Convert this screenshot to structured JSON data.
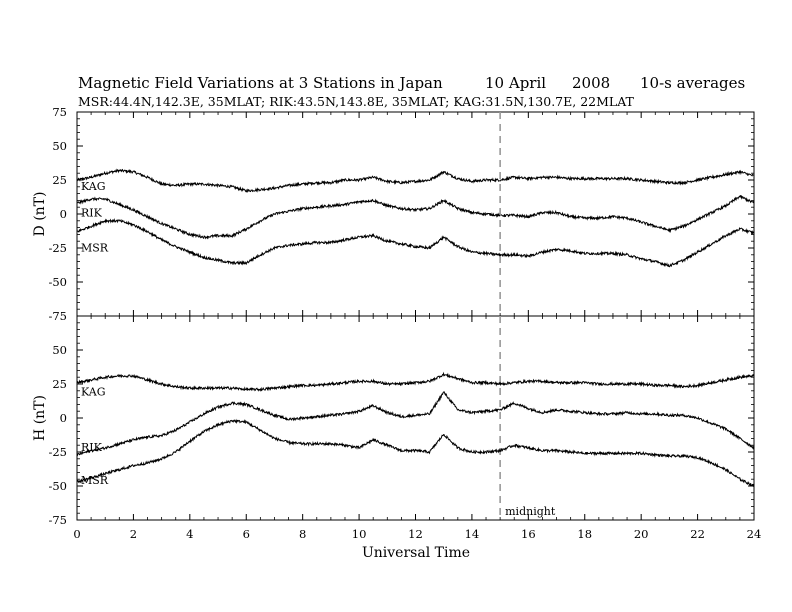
{
  "header": {
    "title": "Magnetic Field Variations at 3 Stations in Japan",
    "date": "10 April",
    "year": "2008",
    "averaging": "10-s averages",
    "stations": "MSR:44.4N,142.3E, 35MLAT;  RIK:43.5N,143.8E, 35MLAT;  KAG:31.5N,130.7E, 22MLAT"
  },
  "chart_data": [
    {
      "type": "line",
      "ylabel": "D (nT)",
      "xlabel": "",
      "xlim": [
        0,
        24
      ],
      "ylim": [
        -75,
        75
      ],
      "yticks": [
        -75,
        -50,
        -25,
        0,
        25,
        50,
        75
      ],
      "xticks": [
        0,
        2,
        4,
        6,
        8,
        10,
        12,
        14,
        16,
        18,
        20,
        22,
        24
      ],
      "series": [
        {
          "name": "KAG",
          "x": [
            0,
            0.5,
            1,
            1.5,
            2,
            2.5,
            3,
            3.5,
            4,
            4.5,
            5,
            5.5,
            6,
            6.5,
            7,
            7.5,
            8,
            8.5,
            9,
            9.5,
            10,
            10.5,
            11,
            11.5,
            12,
            12.5,
            13,
            13.5,
            14,
            14.5,
            15,
            15.5,
            16,
            16.5,
            17,
            17.5,
            18,
            18.5,
            19,
            19.5,
            20,
            20.5,
            21,
            21.5,
            22,
            22.5,
            23,
            23.5,
            24
          ],
          "values": [
            25,
            27,
            30,
            32,
            31,
            27,
            22,
            21,
            22,
            22,
            21,
            20,
            17,
            18,
            19,
            21,
            22,
            23,
            23,
            25,
            25,
            27,
            24,
            23,
            24,
            25,
            31,
            26,
            24,
            25,
            25,
            27,
            26,
            27,
            27,
            26,
            26,
            26,
            26,
            26,
            25,
            24,
            23,
            23,
            25,
            27,
            29,
            31,
            28
          ]
        },
        {
          "name": "RIK",
          "x": [
            0,
            0.5,
            1,
            1.5,
            2,
            2.5,
            3,
            3.5,
            4,
            4.5,
            5,
            5.5,
            6,
            6.5,
            7,
            7.5,
            8,
            8.5,
            9,
            9.5,
            10,
            10.5,
            11,
            11.5,
            12,
            12.5,
            13,
            13.5,
            14,
            14.5,
            15,
            15.5,
            16,
            16.5,
            17,
            17.5,
            18,
            18.5,
            19,
            19.5,
            20,
            20.5,
            21,
            21.5,
            22,
            22.5,
            23,
            23.5,
            24
          ],
          "values": [
            8,
            11,
            11,
            7,
            3,
            -2,
            -7,
            -11,
            -15,
            -17,
            -16,
            -16,
            -11,
            -5,
            0,
            2,
            4,
            5,
            6,
            7,
            9,
            10,
            6,
            4,
            3,
            4,
            10,
            4,
            1,
            0,
            -1,
            -1,
            -2,
            1,
            1,
            -2,
            -3,
            -3,
            -2,
            -3,
            -6,
            -9,
            -12,
            -9,
            -4,
            1,
            6,
            13,
            8
          ]
        },
        {
          "name": "MSR",
          "x": [
            0,
            0.5,
            1,
            1.5,
            2,
            2.5,
            3,
            3.5,
            4,
            4.5,
            5,
            5.5,
            6,
            6.5,
            7,
            7.5,
            8,
            8.5,
            9,
            9.5,
            10,
            10.5,
            11,
            11.5,
            12,
            12.5,
            13,
            13.5,
            14,
            14.5,
            15,
            15.5,
            16,
            16.5,
            17,
            17.5,
            18,
            18.5,
            19,
            19.5,
            20,
            20.5,
            21,
            21.5,
            22,
            22.5,
            23,
            23.5,
            24
          ],
          "values": [
            -13,
            -9,
            -5,
            -5,
            -8,
            -13,
            -19,
            -24,
            -28,
            -32,
            -34,
            -36,
            -36,
            -30,
            -25,
            -23,
            -22,
            -21,
            -21,
            -19,
            -17,
            -16,
            -20,
            -22,
            -24,
            -25,
            -17,
            -24,
            -28,
            -29,
            -30,
            -30,
            -31,
            -28,
            -26,
            -27,
            -29,
            -29,
            -29,
            -30,
            -33,
            -35,
            -38,
            -34,
            -28,
            -22,
            -16,
            -11,
            -14
          ]
        }
      ]
    },
    {
      "type": "line",
      "ylabel": "H (nT)",
      "xlabel": "Universal Time",
      "xlim": [
        0,
        24
      ],
      "ylim": [
        -75,
        75
      ],
      "yticks": [
        -75,
        -50,
        -25,
        0,
        25,
        50,
        75
      ],
      "xticks": [
        0,
        2,
        4,
        6,
        8,
        10,
        12,
        14,
        16,
        18,
        20,
        22,
        24
      ],
      "annotation": {
        "x": 15,
        "label": "midnight"
      },
      "series": [
        {
          "name": "KAG",
          "x": [
            0,
            0.5,
            1,
            1.5,
            2,
            2.5,
            3,
            3.5,
            4,
            4.5,
            5,
            5.5,
            6,
            6.5,
            7,
            7.5,
            8,
            8.5,
            9,
            9.5,
            10,
            10.5,
            11,
            11.5,
            12,
            12.5,
            13,
            13.5,
            14,
            14.5,
            15,
            15.5,
            16,
            16.5,
            17,
            17.5,
            18,
            18.5,
            19,
            19.5,
            20,
            20.5,
            21,
            21.5,
            22,
            22.5,
            23,
            23.5,
            24
          ],
          "values": [
            26,
            28,
            30,
            31,
            31,
            28,
            25,
            23,
            22,
            22,
            22,
            22,
            21,
            21,
            22,
            23,
            24,
            24,
            25,
            26,
            27,
            27,
            25,
            25,
            26,
            27,
            32,
            29,
            26,
            26,
            25,
            26,
            27,
            27,
            26,
            26,
            26,
            25,
            25,
            25,
            25,
            24,
            24,
            23,
            24,
            26,
            28,
            30,
            31
          ]
        },
        {
          "name": "RIK",
          "x": [
            0,
            0.5,
            1,
            1.5,
            2,
            2.5,
            3,
            3.5,
            4,
            4.5,
            5,
            5.5,
            6,
            6.5,
            7,
            7.5,
            8,
            8.5,
            9,
            9.5,
            10,
            10.5,
            11,
            11.5,
            12,
            12.5,
            13,
            13.5,
            14,
            14.5,
            15,
            15.5,
            16,
            16.5,
            17,
            17.5,
            18,
            18.5,
            19,
            19.5,
            20,
            20.5,
            21,
            21.5,
            22,
            22.5,
            23,
            23.5,
            24
          ],
          "values": [
            -27,
            -24,
            -22,
            -19,
            -16,
            -14,
            -13,
            -9,
            -3,
            3,
            8,
            11,
            10,
            6,
            2,
            -1,
            0,
            1,
            2,
            3,
            5,
            9,
            4,
            1,
            2,
            3,
            19,
            6,
            4,
            5,
            6,
            11,
            7,
            4,
            6,
            5,
            4,
            3,
            3,
            4,
            3,
            3,
            2,
            2,
            0,
            -4,
            -8,
            -15,
            -22
          ]
        },
        {
          "name": "MSR",
          "x": [
            0,
            0.5,
            1,
            1.5,
            2,
            2.5,
            3,
            3.5,
            4,
            4.5,
            5,
            5.5,
            6,
            6.5,
            7,
            7.5,
            8,
            8.5,
            9,
            9.5,
            10,
            10.5,
            11,
            11.5,
            12,
            12.5,
            13,
            13.5,
            14,
            14.5,
            15,
            15.5,
            16,
            16.5,
            17,
            17.5,
            18,
            18.5,
            19,
            19.5,
            20,
            20.5,
            21,
            21.5,
            22,
            22.5,
            23,
            23.5,
            24
          ],
          "values": [
            -47,
            -44,
            -41,
            -38,
            -35,
            -33,
            -30,
            -25,
            -17,
            -10,
            -5,
            -2,
            -3,
            -9,
            -15,
            -18,
            -19,
            -19,
            -19,
            -20,
            -22,
            -16,
            -20,
            -24,
            -24,
            -25,
            -12,
            -22,
            -25,
            -25,
            -24,
            -20,
            -22,
            -24,
            -24,
            -25,
            -26,
            -26,
            -26,
            -26,
            -26,
            -27,
            -28,
            -28,
            -29,
            -33,
            -38,
            -45,
            -50
          ]
        }
      ]
    }
  ]
}
